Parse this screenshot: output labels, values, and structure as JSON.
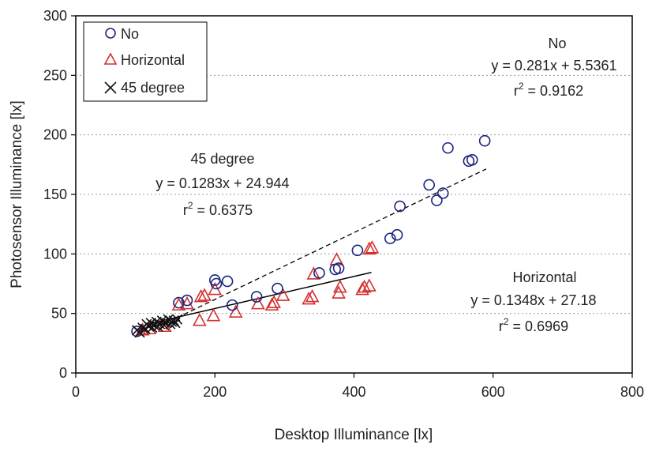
{
  "chart_data": {
    "type": "scatter",
    "title": "",
    "xlabel": "Desktop Illuminance [lx]",
    "ylabel": "Photosensor Illuminance [lx]",
    "xlim": [
      0,
      800
    ],
    "ylim": [
      0,
      300
    ],
    "xticks": [
      "0",
      "200",
      "400",
      "600",
      "800"
    ],
    "yticks": [
      "0",
      "50",
      "100",
      "150",
      "200",
      "250",
      "300"
    ],
    "grid": "horizontal-dotted",
    "legend_position": "top-left",
    "series": [
      {
        "name": "No",
        "marker": "circle",
        "color": "#1a237e",
        "points": [
          [
            88,
            35
          ],
          [
            148,
            59
          ],
          [
            160,
            61
          ],
          [
            200,
            78
          ],
          [
            202,
            75
          ],
          [
            218,
            77
          ],
          [
            225,
            57
          ],
          [
            260,
            64
          ],
          [
            290,
            71
          ],
          [
            350,
            84
          ],
          [
            373,
            87
          ],
          [
            378,
            88
          ],
          [
            405,
            103
          ],
          [
            452,
            113
          ],
          [
            462,
            116
          ],
          [
            466,
            140
          ],
          [
            508,
            158
          ],
          [
            519,
            145
          ],
          [
            528,
            151
          ],
          [
            535,
            189
          ],
          [
            565,
            178
          ],
          [
            570,
            179
          ],
          [
            588,
            195
          ]
        ],
        "trend": {
          "x": [
            145,
            590
          ],
          "equation": "y = 0.281x + 5.5361",
          "r2_label": "r",
          "r2_sup": "2",
          "r2_value": " = 0.9162"
        }
      },
      {
        "name": "Horizontal",
        "marker": "triangle",
        "color": "#d32f2f",
        "points": [
          [
            96,
            36
          ],
          [
            106,
            37
          ],
          [
            128,
            39
          ],
          [
            148,
            57
          ],
          [
            160,
            58
          ],
          [
            178,
            44
          ],
          [
            180,
            64
          ],
          [
            185,
            65
          ],
          [
            198,
            48
          ],
          [
            200,
            70
          ],
          [
            230,
            51
          ],
          [
            262,
            58
          ],
          [
            282,
            57
          ],
          [
            285,
            59
          ],
          [
            298,
            65
          ],
          [
            335,
            62
          ],
          [
            340,
            64
          ],
          [
            342,
            83
          ],
          [
            375,
            95
          ],
          [
            378,
            67
          ],
          [
            380,
            72
          ],
          [
            412,
            70
          ],
          [
            415,
            72
          ],
          [
            422,
            73
          ],
          [
            422,
            104
          ],
          [
            426,
            105
          ]
        ],
        "trend": {
          "x": [
            110,
            425
          ],
          "equation": "y = 0.1348x + 27.18",
          "r2_label": "r",
          "r2_sup": "2",
          "r2_value": " = 0.6969"
        }
      },
      {
        "name": "45 degree",
        "marker": "x",
        "color": "#111111",
        "points": [
          [
            88,
            36
          ],
          [
            92,
            34
          ],
          [
            96,
            38
          ],
          [
            100,
            37
          ],
          [
            102,
            41
          ],
          [
            105,
            39
          ],
          [
            108,
            42
          ],
          [
            110,
            38
          ],
          [
            113,
            40
          ],
          [
            116,
            43
          ],
          [
            118,
            39
          ],
          [
            121,
            41
          ],
          [
            124,
            44
          ],
          [
            127,
            40
          ],
          [
            130,
            42
          ],
          [
            133,
            45
          ],
          [
            136,
            41
          ],
          [
            138,
            43
          ],
          [
            141,
            44
          ],
          [
            143,
            42
          ],
          [
            146,
            45
          ]
        ],
        "trend": {
          "x": [
            90,
            150
          ],
          "equation": "y = 0.1283x + 24.944",
          "r2_label": "r",
          "r2_sup": "2",
          "r2_value": " = 0.6375"
        }
      }
    ],
    "annotations": [
      {
        "series": "No",
        "title": "No"
      },
      {
        "series": "45 degree",
        "title": "45 degree"
      },
      {
        "series": "Horizontal",
        "title": "Horizontal"
      }
    ]
  }
}
